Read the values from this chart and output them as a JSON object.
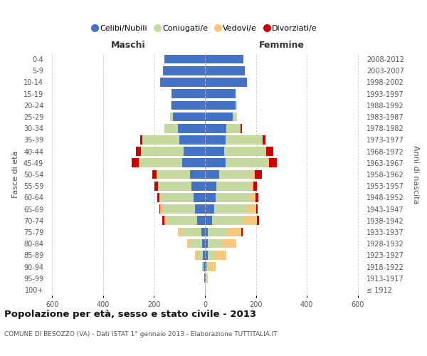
{
  "age_groups": [
    "100+",
    "95-99",
    "90-94",
    "85-89",
    "80-84",
    "75-79",
    "70-74",
    "65-69",
    "60-64",
    "55-59",
    "50-54",
    "45-49",
    "40-44",
    "35-39",
    "30-34",
    "25-29",
    "20-24",
    "15-19",
    "10-14",
    "5-9",
    "0-4"
  ],
  "birth_years": [
    "≤ 1912",
    "1913-1917",
    "1918-1922",
    "1923-1927",
    "1928-1932",
    "1933-1937",
    "1938-1942",
    "1943-1947",
    "1948-1952",
    "1953-1957",
    "1958-1962",
    "1963-1967",
    "1968-1972",
    "1973-1977",
    "1978-1982",
    "1983-1987",
    "1988-1992",
    "1993-1997",
    "1998-2002",
    "2003-2007",
    "2008-2012"
  ],
  "males": {
    "celibi": [
      1,
      2,
      5,
      8,
      10,
      15,
      30,
      40,
      45,
      52,
      58,
      90,
      85,
      100,
      105,
      125,
      130,
      130,
      175,
      165,
      160
    ],
    "coniugati": [
      0,
      0,
      5,
      22,
      45,
      75,
      115,
      125,
      130,
      130,
      130,
      170,
      165,
      145,
      55,
      12,
      3,
      0,
      0,
      0,
      0
    ],
    "vedovi": [
      0,
      0,
      0,
      8,
      15,
      15,
      15,
      10,
      5,
      3,
      2,
      0,
      0,
      0,
      0,
      0,
      0,
      0,
      0,
      0,
      0
    ],
    "divorziati": [
      0,
      0,
      0,
      0,
      0,
      0,
      8,
      5,
      8,
      14,
      16,
      28,
      22,
      10,
      0,
      0,
      0,
      0,
      0,
      0,
      0
    ]
  },
  "females": {
    "nubili": [
      1,
      2,
      5,
      10,
      12,
      12,
      28,
      35,
      42,
      45,
      55,
      80,
      75,
      80,
      85,
      110,
      120,
      120,
      165,
      155,
      150
    ],
    "coniugate": [
      0,
      2,
      8,
      25,
      55,
      75,
      120,
      130,
      135,
      130,
      130,
      165,
      165,
      145,
      55,
      15,
      5,
      0,
      0,
      0,
      0
    ],
    "vedove": [
      2,
      8,
      30,
      50,
      55,
      55,
      55,
      35,
      20,
      15,
      10,
      5,
      0,
      0,
      0,
      0,
      0,
      0,
      0,
      0,
      0
    ],
    "divorziate": [
      0,
      0,
      0,
      0,
      0,
      5,
      10,
      8,
      12,
      15,
      28,
      32,
      28,
      12,
      5,
      0,
      0,
      0,
      0,
      0,
      0
    ]
  },
  "colors": {
    "celibi": "#4472c4",
    "coniugati": "#c5d9a0",
    "vedovi": "#f5c87e",
    "divorziati": "#cc0000"
  },
  "xlim": 620,
  "title": "Popolazione per età, sesso e stato civile - 2013",
  "subtitle": "COMUNE DI BESOZZO (VA) - Dati ISTAT 1° gennaio 2013 - Elaborazione TUTTITALIA.IT",
  "ylabel_left": "Fasce di età",
  "ylabel_right": "Anni di nascita",
  "xlabel_left": "Maschi",
  "xlabel_right": "Femmine",
  "legend_labels": [
    "Celibi/Nubili",
    "Coniugati/e",
    "Vedovi/e",
    "Divorziati/e"
  ],
  "background_color": "#ffffff",
  "grid_color": "#cccccc"
}
